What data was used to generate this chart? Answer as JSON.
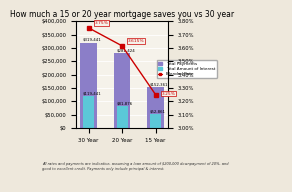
{
  "title": "How much a 15 or 20 year mortgage saves you vs 30 year",
  "categories": [
    "30 Year",
    "20 Year",
    "15 Year"
  ],
  "total_payments": [
    319441,
    281424,
    152361
  ],
  "total_interest": [
    119441,
    81876,
    52861
  ],
  "rates": [
    3.75,
    3.615,
    3.25
  ],
  "rate_labels": [
    "3.75%",
    "3.615%",
    "3.25%"
  ],
  "total_labels": [
    "$319,441",
    "$281,424",
    "$152,361"
  ],
  "interest_labels": [
    "$119,441",
    "$81,876",
    "$52,861"
  ],
  "bar_color_payments": "#8B7EC8",
  "bar_color_interest": "#5BC8D8",
  "line_color": "#CC0000",
  "bar_width": 0.5,
  "ylim_left": [
    0,
    400000
  ],
  "ylim_right": [
    3.0,
    3.8
  ],
  "yticks_left": [
    0,
    50000,
    100000,
    150000,
    200000,
    250000,
    300000,
    350000,
    400000
  ],
  "yticks_right": [
    3.0,
    3.1,
    3.2,
    3.3,
    3.4,
    3.5,
    3.6,
    3.7,
    3.8
  ],
  "footnote": "All rates and payments are indicative, assuming a loan amount of $200,000 downpayment of 20%, and\ngood to excellent credit. Payments only include principal & interest.",
  "legend_labels": [
    "Total Payments",
    "Total Amount of Interest",
    "Blended Rate"
  ],
  "bg_color": "#EEE8DC",
  "plot_bg_color": "#F5F2EA"
}
